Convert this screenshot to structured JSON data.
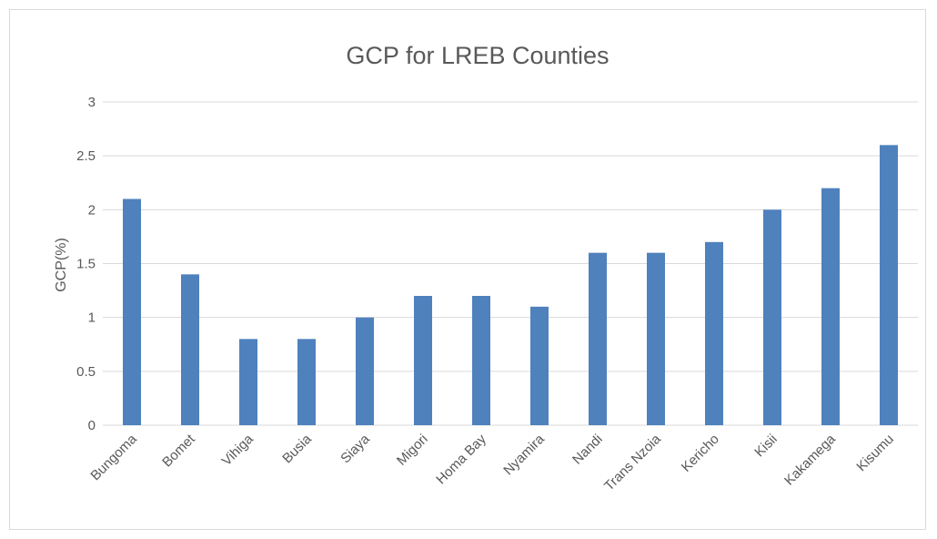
{
  "chart_data": {
    "type": "bar",
    "title": "GCP for LREB Counties",
    "xlabel": "",
    "ylabel": "GCP(%)",
    "ylim": [
      0,
      3
    ],
    "yticks": [
      "0",
      "0.5",
      "1",
      "1.5",
      "2",
      "2.5",
      "3"
    ],
    "grid": true,
    "legend": "none",
    "bar_color": "#4f81bd",
    "grid_color": "#d9d9d9",
    "categories": [
      "Bungoma",
      "Bomet",
      "Vihiga",
      "Busia",
      "Siaya",
      "Migori",
      "Homa Bay",
      "Nyamira",
      "Nandi",
      "Trans Nzoia",
      "Kericho",
      "Kisii",
      "Kakamega",
      "Kisumu"
    ],
    "values": [
      2.1,
      1.4,
      0.8,
      0.8,
      1.0,
      1.2,
      1.2,
      1.1,
      1.6,
      1.6,
      1.7,
      2.0,
      2.2,
      2.6
    ]
  }
}
